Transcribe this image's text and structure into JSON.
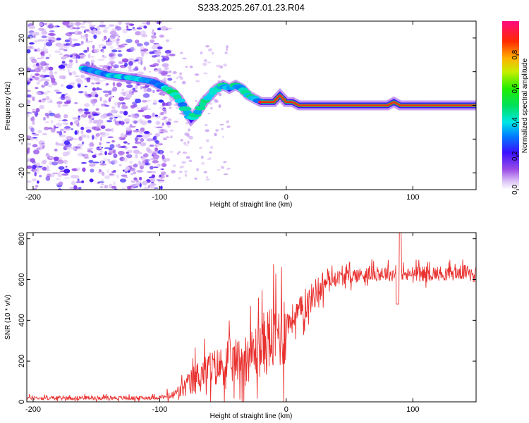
{
  "chart_data": [
    {
      "id": "spectrogram",
      "type": "heatmap",
      "title": "S233.2025.267.01.23.R04",
      "xlabel": "Height of straight line (km)",
      "ylabel": "Frequency (Hz)",
      "xlim": [
        -205,
        150
      ],
      "ylim": [
        -25,
        25
      ],
      "xticks": [
        -200,
        -100,
        0,
        100
      ],
      "xtick_labels": [
        "-200",
        "-100",
        "0",
        "100"
      ],
      "yticks": [
        -20,
        -10,
        0,
        10,
        20
      ],
      "ytick_labels": [
        "-20",
        "-10",
        "0",
        "10",
        "20"
      ],
      "signal_trace": {
        "description": "peak frequency track",
        "x": [
          -160,
          -150,
          -140,
          -120,
          -105,
          -95,
          -90,
          -85,
          -80,
          -75,
          -70,
          -65,
          -60,
          -55,
          -50,
          -45,
          -40,
          -35,
          -30,
          -25,
          -20,
          -15,
          -10,
          -5,
          0,
          5,
          10,
          20,
          40,
          60,
          80,
          85,
          90,
          100,
          120,
          150
        ],
        "y": [
          11,
          10,
          9,
          8,
          7,
          5,
          4,
          2,
          -1,
          -4,
          -2,
          1,
          3,
          5,
          6,
          5,
          6,
          5,
          3,
          2,
          1,
          1,
          1,
          3,
          1,
          1,
          0,
          0,
          0,
          0,
          0,
          1,
          0,
          0,
          0,
          0
        ]
      },
      "colorbar": {
        "label": "Normalized spectral amplitude",
        "range": [
          0.0,
          1.0
        ],
        "ticks": [
          0.0,
          0.2,
          0.4,
          0.6,
          0.8
        ],
        "tick_labels": [
          "0.0",
          "0.2",
          "0.4",
          "0.6",
          "0.8"
        ]
      }
    },
    {
      "id": "snr",
      "type": "line",
      "xlabel": "Height of straight line (km)",
      "ylabel": "SNR (10 * v/v)",
      "xlim": [
        -205,
        150
      ],
      "ylim": [
        0,
        830
      ],
      "xticks": [
        -200,
        -100,
        0,
        100
      ],
      "xtick_labels": [
        "-200",
        "-100",
        "0",
        "100"
      ],
      "yticks": [
        0,
        200,
        400,
        600,
        800
      ],
      "ytick_labels": [
        "0",
        "200",
        "400",
        "600",
        "800"
      ],
      "series": [
        {
          "name": "SNR",
          "color": "#e8302e",
          "x": [
            -205,
            -180,
            -160,
            -140,
            -120,
            -100,
            -90,
            -85,
            -80,
            -75,
            -70,
            -65,
            -60,
            -55,
            -50,
            -45,
            -40,
            -35,
            -30,
            -25,
            -20,
            -15,
            -10,
            -5,
            0,
            5,
            10,
            15,
            20,
            25,
            30,
            35,
            40,
            50,
            60,
            70,
            80,
            85,
            90,
            95,
            100,
            110,
            120,
            130,
            140,
            150
          ],
          "y": [
            20,
            18,
            20,
            20,
            18,
            22,
            30,
            50,
            70,
            95,
            130,
            150,
            160,
            170,
            180,
            190,
            200,
            210,
            220,
            240,
            270,
            300,
            320,
            350,
            380,
            410,
            440,
            470,
            510,
            550,
            580,
            600,
            610,
            615,
            625,
            630,
            630,
            625,
            640,
            620,
            630,
            630,
            630,
            630,
            635,
            640
          ]
        }
      ]
    }
  ]
}
